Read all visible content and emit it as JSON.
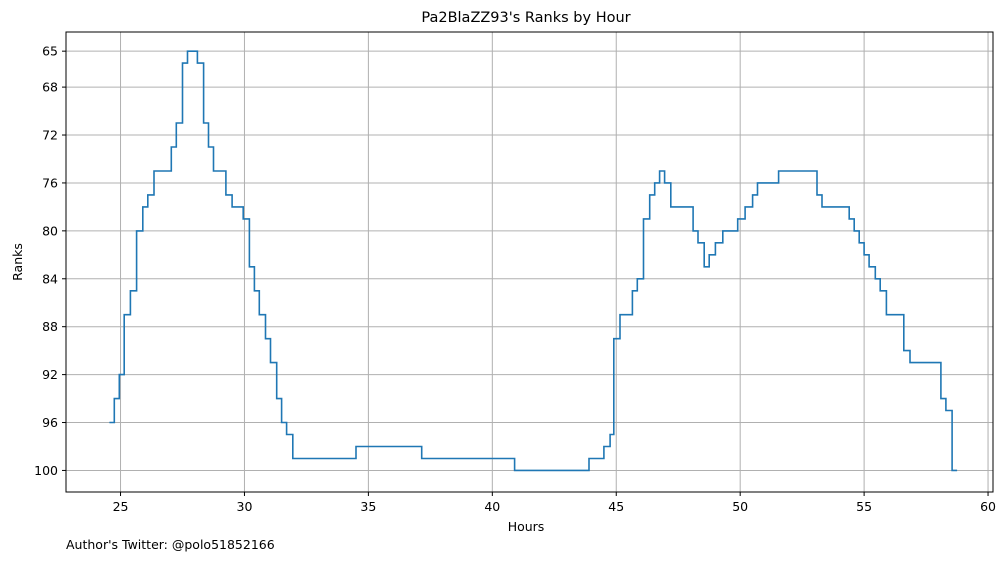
{
  "chart_data": {
    "type": "line",
    "step": "post",
    "title": "Pa2BlaZZ93's Ranks by Hour",
    "xlabel": "Hours",
    "ylabel": "Ranks",
    "xlim": [
      22.8,
      60.2
    ],
    "ylim": [
      101.8,
      63.4
    ],
    "y_inverted": true,
    "grid": true,
    "xticks": [
      25,
      30,
      35,
      40,
      45,
      50,
      55,
      60
    ],
    "yticks": [
      65,
      68,
      72,
      76,
      80,
      84,
      88,
      92,
      96,
      100
    ],
    "line_color": "#1f77b4",
    "series": [
      {
        "x": [
          24.55,
          24.75,
          24.95,
          25.15,
          25.4,
          25.65,
          25.9,
          26.1,
          26.35,
          26.55,
          26.8,
          27.05,
          27.25,
          27.5,
          27.7,
          27.9,
          28.1,
          28.35,
          28.55,
          28.75,
          29.0,
          29.25,
          29.5,
          29.75,
          29.95,
          30.2,
          30.4,
          30.6,
          30.85,
          31.05,
          31.3,
          31.5,
          31.7,
          31.95,
          32.15,
          34.5,
          36.9,
          37.15,
          40.9,
          43.9,
          44.5,
          44.75,
          44.9,
          45.15,
          45.4,
          45.65,
          45.85,
          46.1,
          46.35,
          46.55,
          46.75,
          46.95,
          47.2,
          47.85,
          48.1,
          48.3,
          48.55,
          48.75,
          49.0,
          49.3,
          49.55,
          49.9,
          50.2,
          50.5,
          50.7,
          50.95,
          51.55,
          51.8,
          52.0,
          53.1,
          53.3,
          53.5,
          54.4,
          54.6,
          54.8,
          55.0,
          55.2,
          55.45,
          55.65,
          55.9,
          56.15,
          56.6,
          56.85,
          57.05,
          58.1,
          58.3,
          58.55,
          58.75
        ],
        "y": [
          96,
          94,
          92,
          87,
          85,
          80,
          78,
          77,
          75,
          75,
          75,
          73,
          71,
          66,
          65,
          65,
          66,
          71,
          73,
          75,
          75,
          77,
          78,
          78,
          79,
          83,
          85,
          87,
          89,
          91,
          94,
          96,
          97,
          99,
          99,
          98,
          98,
          99,
          100,
          99,
          98,
          97,
          89,
          87,
          87,
          85,
          84,
          79,
          77,
          76,
          75,
          76,
          78,
          78,
          80,
          81,
          83,
          82,
          81,
          80,
          80,
          79,
          78,
          77,
          76,
          76,
          75,
          75,
          75,
          77,
          78,
          78,
          79,
          80,
          81,
          82,
          83,
          84,
          85,
          87,
          87,
          90,
          91,
          91,
          94,
          95,
          100,
          100
        ]
      }
    ]
  },
  "footer": {
    "author": "Author's Twitter: @polo51852166"
  }
}
